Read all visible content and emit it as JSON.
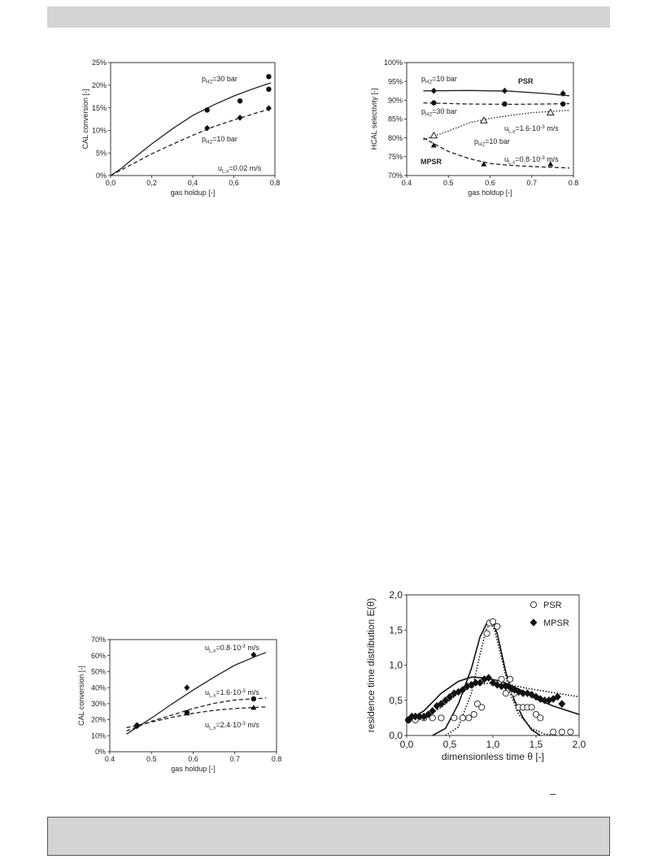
{
  "page": {
    "dash_mark": "–"
  },
  "chart_data": [
    {
      "id": "c1",
      "type": "line",
      "xlabel": "gas holdup [-]",
      "ylabel": "CAL conversion [-]",
      "xlim": [
        0,
        0.8
      ],
      "ylim": [
        0,
        25
      ],
      "xticks": [
        "0,0",
        "0,2",
        "0,4",
        "0,6",
        "0,8"
      ],
      "yticks": [
        "0%",
        "5%",
        "10%",
        "15%",
        "20%",
        "25%"
      ],
      "series": [
        {
          "style": "solid",
          "curve": [
            [
              0,
              0
            ],
            [
              0.05,
              1.5
            ],
            [
              0.1,
              3.4
            ],
            [
              0.2,
              7
            ],
            [
              0.3,
              10.3
            ],
            [
              0.4,
              13.3
            ],
            [
              0.5,
              15.6
            ],
            [
              0.6,
              17.6
            ],
            [
              0.7,
              19.3
            ],
            [
              0.78,
              20.5
            ]
          ],
          "marker": "circle",
          "points": [
            [
              0.47,
              14.5
            ],
            [
              0.63,
              16.5
            ],
            [
              0.77,
              19.1
            ],
            [
              0.77,
              21.9
            ]
          ]
        },
        {
          "style": "dashed",
          "curve": [
            [
              0,
              0
            ],
            [
              0.1,
              2.4
            ],
            [
              0.2,
              4.8
            ],
            [
              0.3,
              6.9
            ],
            [
              0.4,
              8.9
            ],
            [
              0.5,
              10.8
            ],
            [
              0.6,
              12.3
            ],
            [
              0.7,
              13.7
            ],
            [
              0.78,
              14.8
            ]
          ],
          "marker": "diamond",
          "points": [
            [
              0.47,
              10.5
            ],
            [
              0.63,
              12.8
            ],
            [
              0.77,
              14.9
            ]
          ]
        }
      ],
      "annotations": [
        "pH2=30 bar",
        "pH2=10 bar",
        "uL,s=0.02 m/s"
      ]
    },
    {
      "id": "c2",
      "type": "line",
      "xlabel": "gas holdup [-]",
      "ylabel": "HCAL selectivity [-]",
      "xlim": [
        0.4,
        0.8
      ],
      "ylim": [
        70,
        100
      ],
      "xticks": [
        "0.4",
        "0.5",
        "0.6",
        "0.7",
        "0.8"
      ],
      "yticks": [
        "70%",
        "75%",
        "80%",
        "85%",
        "90%",
        "95%",
        "100%"
      ],
      "series": [
        {
          "style": "solid",
          "curve": [
            [
              0.44,
              92.5
            ],
            [
              0.55,
              92.6
            ],
            [
              0.65,
              92.4
            ],
            [
              0.73,
              91.8
            ],
            [
              0.79,
              91.2
            ]
          ],
          "marker": "diamond",
          "points": [
            [
              0.465,
              92.5
            ],
            [
              0.635,
              92.5
            ],
            [
              0.775,
              91.8
            ]
          ]
        },
        {
          "style": "dashed",
          "curve": [
            [
              0.44,
              89.3
            ],
            [
              0.55,
              89.0
            ],
            [
              0.65,
              88.9
            ],
            [
              0.73,
              89.0
            ],
            [
              0.79,
              89.1
            ]
          ],
          "marker": "circle",
          "points": [
            [
              0.465,
              89.3
            ],
            [
              0.635,
              89.0
            ],
            [
              0.775,
              89.0
            ]
          ]
        },
        {
          "style": "dotted",
          "curve": [
            [
              0.44,
              79.5
            ],
            [
              0.5,
              81.8
            ],
            [
              0.55,
              84
            ],
            [
              0.6,
              85.2
            ],
            [
              0.65,
              86.0
            ],
            [
              0.7,
              86.7
            ],
            [
              0.79,
              87.3
            ]
          ],
          "marker": "triangle-open",
          "points": [
            [
              0.465,
              80.6
            ],
            [
              0.585,
              84.6
            ],
            [
              0.745,
              86.7
            ]
          ]
        },
        {
          "style": "dashed",
          "curve": [
            [
              0.44,
              80
            ],
            [
              0.5,
              76.4
            ],
            [
              0.55,
              74.5
            ],
            [
              0.6,
              73.2
            ],
            [
              0.65,
              72.7
            ],
            [
              0.7,
              72.4
            ],
            [
              0.79,
              72.0
            ]
          ],
          "marker": "triangle",
          "points": [
            [
              0.465,
              78.0
            ],
            [
              0.585,
              73.0
            ],
            [
              0.745,
              73.0
            ]
          ]
        }
      ],
      "annotations": [
        "pH2=10 bar",
        "PSR",
        "pH2=30 bar",
        "uL,s=1.6·10-3 m/s",
        "pH2=10 bar",
        "uL,s=0.8·10-3 m/s",
        "MPSR"
      ]
    },
    {
      "id": "c3",
      "type": "line",
      "xlabel": "gas holdup [-]",
      "ylabel": "CAL conversion [-]",
      "xlim": [
        0.4,
        0.8
      ],
      "ylim": [
        0,
        70
      ],
      "xticks": [
        "0.4",
        "0.5",
        "0.6",
        "0.7",
        "0.8"
      ],
      "yticks": [
        "0%",
        "10%",
        "20%",
        "30%",
        "40%",
        "50%",
        "60%",
        "70%"
      ],
      "series": [
        {
          "style": "solid",
          "curve": [
            [
              0.44,
              11
            ],
            [
              0.5,
              21
            ],
            [
              0.55,
              30
            ],
            [
              0.6,
              38.5
            ],
            [
              0.65,
              46.5
            ],
            [
              0.7,
              54
            ],
            [
              0.75,
              59.5
            ],
            [
              0.775,
              62
            ]
          ],
          "marker": "diamond",
          "points": [
            [
              0.465,
              16
            ],
            [
              0.585,
              40
            ],
            [
              0.745,
              60.5
            ]
          ]
        },
        {
          "style": "dashed",
          "curve": [
            [
              0.44,
              13
            ],
            [
              0.5,
              19
            ],
            [
              0.55,
              23
            ],
            [
              0.6,
              27
            ],
            [
              0.65,
              30.2
            ],
            [
              0.7,
              32.3
            ],
            [
              0.775,
              33.5
            ]
          ],
          "marker": "circle",
          "points": [
            [
              0.465,
              16.3
            ],
            [
              0.585,
              24.5
            ],
            [
              0.745,
              33
            ]
          ]
        },
        {
          "style": "dashed",
          "curve": [
            [
              0.44,
              15
            ],
            [
              0.5,
              18.5
            ],
            [
              0.55,
              21.5
            ],
            [
              0.6,
              24
            ],
            [
              0.65,
              25.8
            ],
            [
              0.7,
              27
            ],
            [
              0.775,
              28
            ]
          ],
          "marker": "triangle",
          "points": [
            [
              0.465,
              16.8
            ],
            [
              0.585,
              24
            ],
            [
              0.745,
              27.5
            ]
          ]
        }
      ],
      "annotations": [
        "uL,s=0.8·10-3 m/s",
        "uL,s=1.6·10-3 m/s",
        "uL,s=2.4·10-3 m/s"
      ]
    },
    {
      "id": "c4",
      "type": "scatter",
      "xlabel": "dimensionless time θ [-]",
      "ylabel": "residence time distribution E(θ)",
      "xlim": [
        0,
        2
      ],
      "ylim": [
        0,
        2
      ],
      "xticks": [
        "0,0",
        "0,5",
        "1,0",
        "1,5",
        "2,0"
      ],
      "yticks": [
        "0,0",
        "0,5",
        "1,0",
        "1,5",
        "2,0"
      ],
      "legend": [
        "PSR",
        "MPSR"
      ],
      "series": [
        {
          "name": "PSR",
          "marker": "circle-open",
          "points": [
            [
              0.02,
              0.22
            ],
            [
              0.1,
              0.22
            ],
            [
              0.2,
              0.25
            ],
            [
              0.3,
              0.25
            ],
            [
              0.4,
              0.25
            ],
            [
              0.55,
              0.25
            ],
            [
              0.65,
              0.25
            ],
            [
              0.72,
              0.25
            ],
            [
              0.78,
              0.3
            ],
            [
              0.82,
              0.45
            ],
            [
              0.87,
              0.4
            ],
            [
              0.93,
              1.45
            ],
            [
              0.96,
              1.6
            ],
            [
              1.0,
              1.62
            ],
            [
              1.05,
              1.55
            ],
            [
              1.1,
              0.8
            ],
            [
              1.15,
              0.6
            ],
            [
              1.2,
              0.8
            ],
            [
              1.25,
              0.6
            ],
            [
              1.3,
              0.4
            ],
            [
              1.35,
              0.4
            ],
            [
              1.4,
              0.4
            ],
            [
              1.45,
              0.4
            ],
            [
              1.5,
              0.3
            ],
            [
              1.55,
              0.25
            ],
            [
              1.7,
              0.05
            ],
            [
              1.8,
              0.05
            ],
            [
              1.9,
              0.05
            ]
          ]
        },
        {
          "name": "MPSR",
          "marker": "diamond",
          "points": [
            [
              0.02,
              0.22
            ],
            [
              0.06,
              0.27
            ],
            [
              0.1,
              0.27
            ],
            [
              0.15,
              0.27
            ],
            [
              0.2,
              0.27
            ],
            [
              0.25,
              0.3
            ],
            [
              0.3,
              0.35
            ],
            [
              0.35,
              0.42
            ],
            [
              0.4,
              0.45
            ],
            [
              0.45,
              0.5
            ],
            [
              0.5,
              0.55
            ],
            [
              0.55,
              0.6
            ],
            [
              0.6,
              0.62
            ],
            [
              0.65,
              0.65
            ],
            [
              0.7,
              0.7
            ],
            [
              0.75,
              0.72
            ],
            [
              0.8,
              0.75
            ],
            [
              0.85,
              0.75
            ],
            [
              0.9,
              0.8
            ],
            [
              0.95,
              0.82
            ],
            [
              1.0,
              0.75
            ],
            [
              1.05,
              0.72
            ],
            [
              1.1,
              0.7
            ],
            [
              1.15,
              0.7
            ],
            [
              1.2,
              0.68
            ],
            [
              1.25,
              0.65
            ],
            [
              1.3,
              0.62
            ],
            [
              1.35,
              0.6
            ],
            [
              1.4,
              0.6
            ],
            [
              1.45,
              0.58
            ],
            [
              1.5,
              0.55
            ],
            [
              1.55,
              0.52
            ],
            [
              1.6,
              0.5
            ],
            [
              1.65,
              0.5
            ],
            [
              1.7,
              0.52
            ],
            [
              1.75,
              0.55
            ],
            [
              1.8,
              0.45
            ]
          ]
        }
      ],
      "curves": [
        {
          "style": "solid",
          "points": [
            [
              0.3,
              0
            ],
            [
              0.45,
              0.1
            ],
            [
              0.6,
              0.45
            ],
            [
              0.75,
              0.95
            ],
            [
              0.85,
              1.4
            ],
            [
              0.93,
              1.6
            ],
            [
              1.0,
              1.6
            ],
            [
              1.05,
              1.45
            ],
            [
              1.15,
              0.9
            ],
            [
              1.25,
              0.5
            ],
            [
              1.35,
              0.25
            ],
            [
              1.45,
              0.08
            ],
            [
              1.55,
              0.0
            ]
          ]
        },
        {
          "style": "dotted",
          "points": [
            [
              0.45,
              0
            ],
            [
              0.6,
              0.12
            ],
            [
              0.75,
              0.6
            ],
            [
              0.85,
              1.15
            ],
            [
              0.92,
              1.5
            ],
            [
              0.97,
              1.6
            ],
            [
              1.02,
              1.5
            ],
            [
              1.1,
              1.1
            ],
            [
              1.2,
              0.6
            ],
            [
              1.3,
              0.3
            ],
            [
              1.45,
              0.1
            ],
            [
              1.6,
              0.02
            ],
            [
              1.75,
              0.0
            ]
          ]
        },
        {
          "style": "solid",
          "points": [
            [
              0.02,
              0.22
            ],
            [
              0.2,
              0.35
            ],
            [
              0.4,
              0.6
            ],
            [
              0.6,
              0.77
            ],
            [
              0.75,
              0.83
            ],
            [
              0.9,
              0.82
            ],
            [
              1.1,
              0.77
            ],
            [
              1.3,
              0.66
            ],
            [
              1.5,
              0.52
            ],
            [
              1.7,
              0.42
            ],
            [
              2.0,
              0.3
            ]
          ]
        },
        {
          "style": "dotted",
          "points": [
            [
              0.02,
              0.22
            ],
            [
              0.2,
              0.25
            ],
            [
              0.4,
              0.4
            ],
            [
              0.6,
              0.6
            ],
            [
              0.8,
              0.72
            ],
            [
              1.0,
              0.75
            ],
            [
              1.2,
              0.72
            ],
            [
              1.4,
              0.67
            ],
            [
              1.6,
              0.63
            ],
            [
              1.8,
              0.59
            ],
            [
              2.0,
              0.55
            ]
          ]
        }
      ]
    }
  ]
}
